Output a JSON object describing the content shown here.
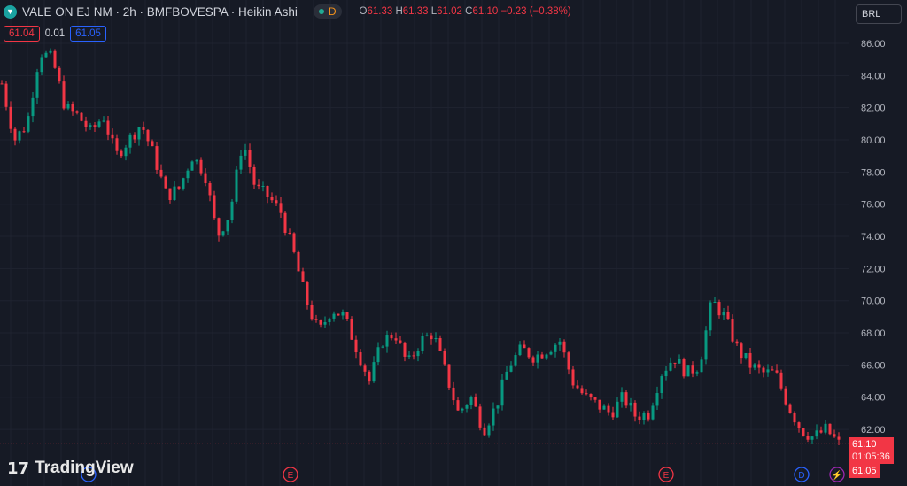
{
  "header": {
    "symbol": "VALE ON EJ NM · 2h · BMFBOVESPA · Heikin Ashi",
    "session_badge": "D",
    "ohlc": {
      "o_label": "O",
      "o": "61.33",
      "h_label": "H",
      "h": "61.33",
      "l_label": "L",
      "l": "61.02",
      "c_label": "C",
      "c": "61.10",
      "change": "−0.23 (−0.38%)"
    }
  },
  "quote": {
    "bid": "61.04",
    "spread": "0.01",
    "ask": "61.05"
  },
  "currency": "BRL",
  "price_labels": {
    "last": "61.10",
    "countdown": "01:05:36",
    "ask": "61.05"
  },
  "branding": "TradingView",
  "events": [
    {
      "type": "earnings",
      "label": "E"
    },
    {
      "type": "earnings",
      "label": "E"
    },
    {
      "type": "dividend",
      "label": "D"
    },
    {
      "type": "split",
      "label": "⚡"
    }
  ],
  "colors": {
    "up": "#089981",
    "down": "#f23645",
    "background": "#161a25"
  },
  "chart_data": {
    "type": "candlestick",
    "style": "Heikin Ashi",
    "ylim": [
      61,
      87
    ],
    "yticks": [
      "86.00",
      "84.00",
      "82.00",
      "80.00",
      "78.00",
      "76.00",
      "74.00",
      "72.00",
      "70.00",
      "68.00",
      "66.00",
      "64.00",
      "62.00"
    ],
    "grid": true,
    "approx_close_path": [
      83.5,
      80,
      81,
      85.5,
      85,
      82,
      81.5,
      80.5,
      81.5,
      79,
      80,
      81,
      79,
      76.5,
      77,
      79,
      78,
      74,
      75.5,
      80,
      77,
      76.5,
      75.5,
      73,
      70,
      68,
      69.5,
      69,
      67,
      65,
      67.5,
      68,
      66,
      67.5,
      68,
      65.5,
      63,
      64,
      62,
      63.5,
      66,
      67,
      66.5,
      67,
      67.5,
      65,
      64,
      63.5,
      63,
      64,
      62.8,
      63,
      65.5,
      66.5,
      65.5,
      66,
      70,
      69,
      67,
      66,
      65.5,
      65.5,
      63.5,
      62,
      61.5,
      62,
      61.1
    ]
  }
}
